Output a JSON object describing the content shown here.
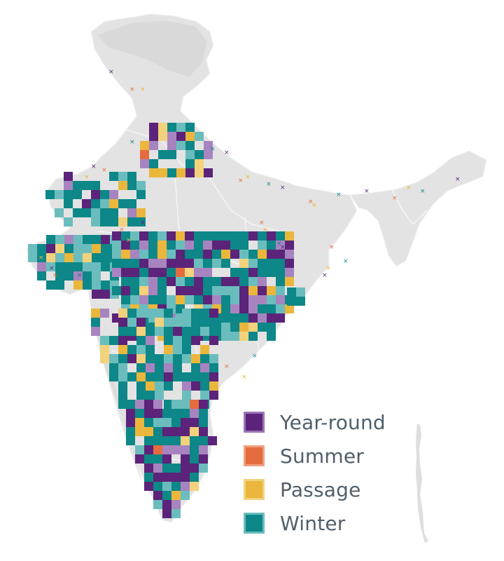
{
  "map": {
    "subject": "India",
    "colors": {
      "land": "#e3e3e3",
      "land_relief": "#d2d2d2",
      "border": "#ffffff",
      "year_round": "#5b2379",
      "summer": "#e46c3e",
      "passage": "#eab73c",
      "winter": "#0d8787"
    },
    "light_colors": {
      "year_round": "#a784c0",
      "summer": "#efa07e",
      "passage": "#f2d27c",
      "winter": "#6bbdbd"
    }
  },
  "legend": {
    "items": [
      {
        "key": "year_round",
        "label": "Year-round",
        "color": "#5b2379",
        "border": "#9a74b6"
      },
      {
        "key": "summer",
        "label": "Summer",
        "color": "#e46c3e",
        "border": "#efa07e"
      },
      {
        "key": "passage",
        "label": "Passage",
        "color": "#eab73c",
        "border": "#f2d27c"
      },
      {
        "key": "winter",
        "label": "Winter",
        "color": "#0d8787",
        "border": "#6bbdbd"
      }
    ]
  }
}
